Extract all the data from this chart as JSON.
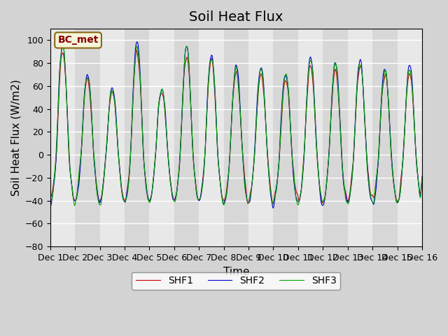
{
  "title": "Soil Heat Flux",
  "ylabel": "Soil Heat Flux (W/m2)",
  "xlabel": "Time",
  "ylim": [
    -80,
    110
  ],
  "yticks": [
    -80,
    -60,
    -40,
    -20,
    0,
    20,
    40,
    60,
    80,
    100
  ],
  "xlim_days": [
    0,
    15
  ],
  "n_days": 15,
  "points_per_day": 48,
  "colors": {
    "SHF1": "#cc0000",
    "SHF2": "#0000cc",
    "SHF3": "#00aa00"
  },
  "legend_labels": [
    "SHF1",
    "SHF2",
    "SHF3"
  ],
  "bc_met_label": "BC_met",
  "background_color": "#d3d3d3",
  "plot_bg_color": "#e8e8e8",
  "title_fontsize": 14,
  "label_fontsize": 11,
  "tick_fontsize": 9
}
